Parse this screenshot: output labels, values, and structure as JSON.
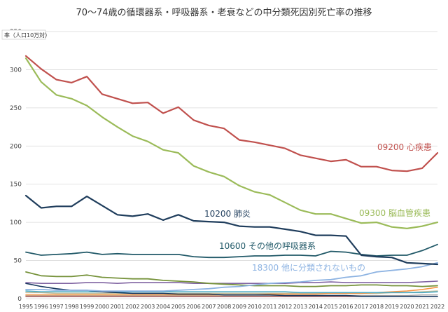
{
  "chart_data": {
    "type": "line",
    "title": "70〜74歳の循環器系・呼吸器系・老衰などの中分類死因別死亡率の推移",
    "ylabel": "率（人口10万対）",
    "ylim": [
      0,
      350
    ],
    "yticks": [
      0,
      50,
      100,
      150,
      200,
      250,
      300,
      350
    ],
    "grid": true,
    "x": [
      "1995",
      "1996",
      "1997",
      "1998",
      "1999",
      "2000",
      "2001",
      "2002",
      "2003",
      "2004",
      "2005",
      "2006",
      "2007",
      "2008",
      "2009",
      "2010",
      "2011",
      "2012",
      "2013",
      "2014",
      "2015",
      "2016",
      "2017",
      "2018",
      "2019",
      "2020",
      "2021",
      "2022"
    ],
    "series": [
      {
        "name": "09200 心疾患",
        "color": "#c0504d",
        "width": 2.2,
        "values": [
          318,
          301,
          287,
          283,
          291,
          268,
          262,
          256,
          257,
          243,
          251,
          234,
          227,
          223,
          208,
          205,
          201,
          197,
          188,
          184,
          180,
          182,
          173,
          173,
          168,
          167,
          171,
          191
        ]
      },
      {
        "name": "09300 脳血管疾患",
        "color": "#9bbb59",
        "width": 2.2,
        "values": [
          315,
          284,
          267,
          262,
          253,
          238,
          225,
          213,
          206,
          195,
          191,
          174,
          166,
          160,
          148,
          140,
          136,
          126,
          116,
          111,
          111,
          105,
          99,
          100,
          94,
          92,
          95,
          100
        ]
      },
      {
        "name": "10200 肺炎",
        "color": "#1f3d5c",
        "width": 2.2,
        "values": [
          135,
          119,
          121,
          121,
          134,
          122,
          110,
          108,
          111,
          103,
          110,
          102,
          101,
          100,
          95,
          94,
          94,
          91,
          88,
          83,
          83,
          82,
          57,
          55,
          54,
          47,
          46,
          45
        ]
      },
      {
        "name": "10600 その他の呼吸器系",
        "color": "#215968",
        "width": 1.8,
        "values": [
          61,
          57,
          58,
          59,
          61,
          58,
          59,
          58,
          58,
          58,
          58,
          55,
          54,
          54,
          55,
          56,
          56,
          57,
          57,
          56,
          62,
          61,
          58,
          56,
          57,
          57,
          63,
          71
        ]
      },
      {
        "name": "18300 他に分類されないもの",
        "color": "#8db3e2",
        "width": 1.8,
        "values": [
          12,
          12,
          11,
          11,
          11,
          10,
          10,
          10,
          10,
          10,
          11,
          12,
          13,
          15,
          16,
          18,
          20,
          21,
          22,
          24,
          25,
          28,
          30,
          35,
          37,
          39,
          42,
          47
        ]
      },
      {
        "name": "",
        "color": "#77933c",
        "width": 1.8,
        "values": [
          35,
          30,
          29,
          29,
          31,
          28,
          27,
          26,
          26,
          24,
          23,
          22,
          20,
          19,
          18,
          17,
          17,
          17,
          16,
          16,
          17,
          17,
          18,
          18,
          17,
          17,
          16,
          17
        ]
      },
      {
        "name": "",
        "color": "#8064a2",
        "width": 1.6,
        "values": [
          21,
          20,
          20,
          20,
          21,
          21,
          20,
          21,
          21,
          21,
          21,
          20,
          20,
          20,
          20,
          20,
          20,
          20,
          21,
          21,
          22,
          21,
          21,
          21,
          21,
          21,
          22,
          23
        ]
      },
      {
        "name": "",
        "color": "#17375e",
        "width": 1.6,
        "values": [
          20,
          16,
          13,
          11,
          11,
          9,
          8,
          7,
          7,
          7,
          6,
          6,
          6,
          5,
          5,
          5,
          5,
          4,
          4,
          4,
          4,
          4,
          3,
          3,
          3,
          3,
          3,
          3
        ]
      },
      {
        "name": "",
        "color": "#4bacc6",
        "width": 1.6,
        "values": [
          10,
          9,
          9,
          9,
          9,
          9,
          9,
          9,
          9,
          9,
          9,
          9,
          9,
          9,
          9,
          9,
          9,
          9,
          8,
          8,
          8,
          8,
          8,
          8,
          8,
          8,
          8,
          9
        ]
      },
      {
        "name": "",
        "color": "#f79646",
        "width": 1.6,
        "values": [
          5,
          5,
          5,
          5,
          5,
          5,
          5,
          5,
          5,
          5,
          5,
          5,
          5,
          5,
          5,
          5,
          6,
          6,
          6,
          6,
          7,
          7,
          7,
          8,
          9,
          10,
          12,
          15
        ]
      },
      {
        "name": "",
        "color": "#c4bd97",
        "width": 1.6,
        "values": [
          8,
          8,
          7,
          7,
          7,
          7,
          7,
          7,
          7,
          7,
          7,
          7,
          7,
          7,
          7,
          7,
          7,
          7,
          7,
          7,
          7,
          7,
          7,
          7,
          8,
          8,
          9,
          10
        ]
      },
      {
        "name": "",
        "color": "#a6a6a6",
        "width": 1.4,
        "values": [
          4,
          4,
          4,
          4,
          4,
          4,
          4,
          4,
          4,
          4,
          4,
          4,
          4,
          4,
          4,
          4,
          4,
          4,
          4,
          4,
          4,
          4,
          4,
          4,
          4,
          4,
          5,
          5
        ]
      },
      {
        "name": "",
        "color": "#953735",
        "width": 1.4,
        "values": [
          3,
          3,
          3,
          3,
          3,
          3,
          3,
          3,
          3,
          3,
          3,
          3,
          3,
          3,
          3,
          3,
          3,
          3,
          3,
          3,
          3,
          3,
          3,
          3,
          3,
          3,
          3,
          3
        ]
      }
    ],
    "annotations": [
      {
        "text": "09200 心疾患",
        "color": "#c0504d"
      },
      {
        "text": "09300 脳血管疾患",
        "color": "#9bbb59"
      },
      {
        "text": "10200 肺炎",
        "color": "#1f3d5c"
      },
      {
        "text": "10600 その他の呼吸器系",
        "color": "#215968"
      },
      {
        "text": "18300 他に分類されないもの",
        "color": "#8db3e2"
      }
    ]
  }
}
